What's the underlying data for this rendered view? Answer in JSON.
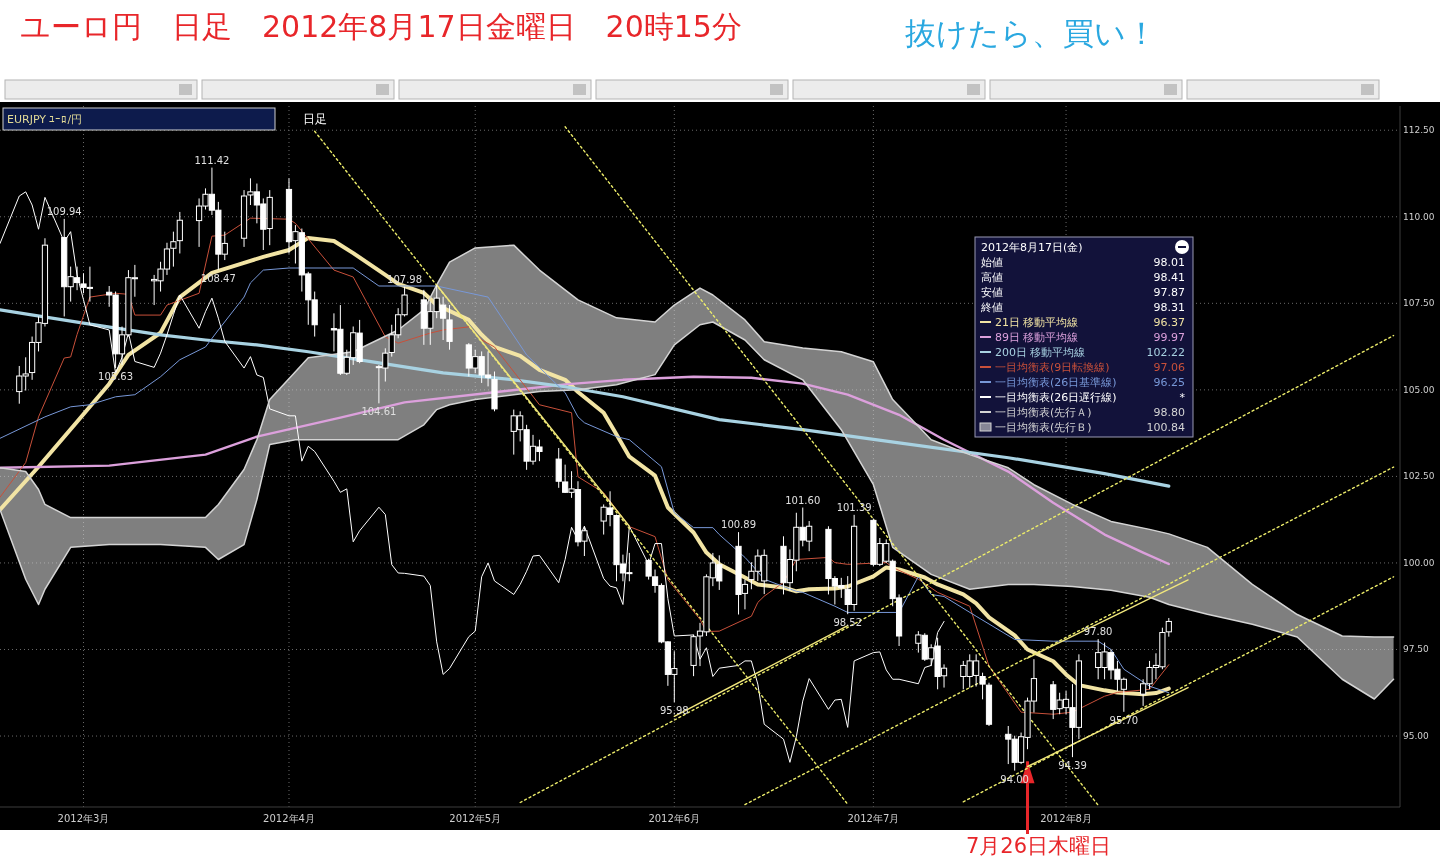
{
  "chart_data": {
    "type": "candlestick",
    "title": "ユーロ円　日足　2012年8月17日金曜日　20時15分",
    "subtitle": "抜けたら、買い！",
    "xlim": [
      "2012-02-17",
      "2012-09-22"
    ],
    "xticks": [
      {
        "value": "2012-03-01",
        "label": "2012年3月"
      },
      {
        "value": "2012-04-02",
        "label": "2012年4月"
      },
      {
        "value": "2012-05-01",
        "label": "2012年5月"
      },
      {
        "value": "2012-06-01",
        "label": "2012年6月"
      },
      {
        "value": "2012-07-02",
        "label": "2012年7月"
      },
      {
        "value": "2012-08-01",
        "label": "2012年8月"
      }
    ],
    "ylim": [
      92.95,
      113.2
    ],
    "yticks": [
      {
        "value": 95,
        "label": "95.00"
      },
      {
        "value": 97.5,
        "label": "97.50"
      },
      {
        "value": 100,
        "label": "100.00"
      },
      {
        "value": 102.5,
        "label": "102.50"
      },
      {
        "value": 105,
        "label": "105.00"
      },
      {
        "value": 107.5,
        "label": "107.50"
      },
      {
        "value": 110,
        "label": "110.00"
      },
      {
        "value": 112.5,
        "label": "112.50"
      }
    ],
    "grid": true,
    "legend": "top right",
    "x": [
      "2012-02-20",
      "2012-02-21",
      "2012-02-22",
      "2012-02-23",
      "2012-02-24",
      "2012-02-27",
      "2012-02-28",
      "2012-02-29",
      "2012-03-01",
      "2012-03-02",
      "2012-03-05",
      "2012-03-06",
      "2012-03-07",
      "2012-03-08",
      "2012-03-09",
      "2012-03-12",
      "2012-03-13",
      "2012-03-14",
      "2012-03-15",
      "2012-03-16",
      "2012-03-19",
      "2012-03-20",
      "2012-03-21",
      "2012-03-22",
      "2012-03-23",
      "2012-03-26",
      "2012-03-27",
      "2012-03-28",
      "2012-03-29",
      "2012-03-30",
      "2012-04-02",
      "2012-04-03",
      "2012-04-04",
      "2012-04-05",
      "2012-04-06",
      "2012-04-09",
      "2012-04-10",
      "2012-04-11",
      "2012-04-12",
      "2012-04-13",
      "2012-04-16",
      "2012-04-17",
      "2012-04-18",
      "2012-04-19",
      "2012-04-20",
      "2012-04-23",
      "2012-04-24",
      "2012-04-25",
      "2012-04-26",
      "2012-04-27",
      "2012-04-30",
      "2012-05-01",
      "2012-05-02",
      "2012-05-03",
      "2012-05-04",
      "2012-05-07",
      "2012-05-08",
      "2012-05-09",
      "2012-05-10",
      "2012-05-11",
      "2012-05-14",
      "2012-05-15",
      "2012-05-16",
      "2012-05-17",
      "2012-05-18",
      "2012-05-21",
      "2012-05-22",
      "2012-05-23",
      "2012-05-24",
      "2012-05-25",
      "2012-05-28",
      "2012-05-29",
      "2012-05-30",
      "2012-05-31",
      "2012-06-01",
      "2012-06-04",
      "2012-06-05",
      "2012-06-06",
      "2012-06-07",
      "2012-06-08",
      "2012-06-11",
      "2012-06-12",
      "2012-06-13",
      "2012-06-14",
      "2012-06-15",
      "2012-06-18",
      "2012-06-19",
      "2012-06-20",
      "2012-06-21",
      "2012-06-22",
      "2012-06-25",
      "2012-06-26",
      "2012-06-27",
      "2012-06-28",
      "2012-06-29",
      "2012-07-02",
      "2012-07-03",
      "2012-07-04",
      "2012-07-05",
      "2012-07-06",
      "2012-07-09",
      "2012-07-10",
      "2012-07-11",
      "2012-07-12",
      "2012-07-13",
      "2012-07-16",
      "2012-07-17",
      "2012-07-18",
      "2012-07-19",
      "2012-07-20",
      "2012-07-23",
      "2012-07-24",
      "2012-07-25",
      "2012-07-26",
      "2012-07-27",
      "2012-07-30",
      "2012-07-31",
      "2012-08-01",
      "2012-08-02",
      "2012-08-03",
      "2012-08-06",
      "2012-08-07",
      "2012-08-08",
      "2012-08-09",
      "2012-08-10",
      "2012-08-13",
      "2012-08-14",
      "2012-08-15",
      "2012-08-16",
      "2012-08-17"
    ],
    "ohlc": [
      [
        104.95,
        105.69,
        104.6,
        105.4
      ],
      [
        105.4,
        105.94,
        104.98,
        105.46
      ],
      [
        105.5,
        106.54,
        105.29,
        106.37
      ],
      [
        106.37,
        107.12,
        106.11,
        106.94
      ],
      [
        106.92,
        109.38,
        106.83,
        109.18
      ],
      [
        109.4,
        109.94,
        107.12,
        107.98
      ],
      [
        107.98,
        108.56,
        107.55,
        108.27
      ],
      [
        108.24,
        108.56,
        107.88,
        108.1
      ],
      [
        108.06,
        108.37,
        107.79,
        107.96
      ],
      [
        107.96,
        108.56,
        107.55,
        107.95
      ],
      [
        107.82,
        108.0,
        107.4,
        107.74
      ],
      [
        107.74,
        107.84,
        105.63,
        106.04
      ],
      [
        106.04,
        106.83,
        105.72,
        106.59
      ],
      [
        106.59,
        108.46,
        106.54,
        108.24
      ],
      [
        108.21,
        108.61,
        107.69,
        108.24
      ],
      [
        108.15,
        108.32,
        107.45,
        108.19
      ],
      [
        108.15,
        108.7,
        107.84,
        108.49
      ],
      [
        108.49,
        109.25,
        108.32,
        109.07
      ],
      [
        109.09,
        109.57,
        108.56,
        109.28
      ],
      [
        109.31,
        110.14,
        108.94,
        109.9
      ],
      [
        109.89,
        110.53,
        109.13,
        110.31
      ],
      [
        110.31,
        110.82,
        110.21,
        110.65
      ],
      [
        110.65,
        111.42,
        110.05,
        110.19
      ],
      [
        110.19,
        110.43,
        108.47,
        108.92
      ],
      [
        108.92,
        109.57,
        108.75,
        109.23
      ],
      [
        109.38,
        110.77,
        109.13,
        110.6
      ],
      [
        110.63,
        111.11,
        110.34,
        110.72
      ],
      [
        110.72,
        110.96,
        109.81,
        110.34
      ],
      [
        110.37,
        110.53,
        109.04,
        109.64
      ],
      [
        109.66,
        110.77,
        109.18,
        110.56
      ],
      [
        110.79,
        111.11,
        108.94,
        109.28
      ],
      [
        109.31,
        109.76,
        108.65,
        109.57
      ],
      [
        109.54,
        109.66,
        107.84,
        108.32
      ],
      [
        108.35,
        108.41,
        106.88,
        107.6
      ],
      [
        107.6,
        107.84,
        106.54,
        106.88
      ],
      [
        106.77,
        107.21,
        106.11,
        106.73
      ],
      [
        106.75,
        107.45,
        105.43,
        105.48
      ],
      [
        105.48,
        106.16,
        105.43,
        105.94
      ],
      [
        105.93,
        106.83,
        105.72,
        106.65
      ],
      [
        106.64,
        107.02,
        105.77,
        105.82
      ],
      [
        105.67,
        105.72,
        104.61,
        105.65
      ],
      [
        105.63,
        106.2,
        105.24,
        106.06
      ],
      [
        106.08,
        106.88,
        105.96,
        106.59
      ],
      [
        106.59,
        107.36,
        106.49,
        107.17
      ],
      [
        107.17,
        107.98,
        107.12,
        107.74
      ],
      [
        107.6,
        107.89,
        106.3,
        106.78
      ],
      [
        106.78,
        107.55,
        106.3,
        107.26
      ],
      [
        107.26,
        108.03,
        107.07,
        107.65
      ],
      [
        107.45,
        107.69,
        106.44,
        107.07
      ],
      [
        107.02,
        107.45,
        106.16,
        106.4
      ],
      [
        106.3,
        106.35,
        105.39,
        105.63
      ],
      [
        105.63,
        106.16,
        105.48,
        105.96
      ],
      [
        105.96,
        106.11,
        105.2,
        105.43
      ],
      [
        105.43,
        106.11,
        105.1,
        105.36
      ],
      [
        105.3,
        105.53,
        104.38,
        104.45
      ],
      [
        103.8,
        104.43,
        103.13,
        104.25
      ],
      [
        103.85,
        104.38,
        103.51,
        104.25
      ],
      [
        103.85,
        103.99,
        102.69,
        102.94
      ],
      [
        102.94,
        103.7,
        102.84,
        103.37
      ],
      [
        103.35,
        103.56,
        102.94,
        103.22
      ],
      [
        103.0,
        103.32,
        102.17,
        102.36
      ],
      [
        102.34,
        102.84,
        102.02,
        102.04
      ],
      [
        102.04,
        102.65,
        101.88,
        102.14
      ],
      [
        102.12,
        102.36,
        100.48,
        100.61
      ],
      [
        100.63,
        101.06,
        100.2,
        100.93
      ],
      [
        101.21,
        101.69,
        100.82,
        101.61
      ],
      [
        101.59,
        102.07,
        101.06,
        101.4
      ],
      [
        101.37,
        101.4,
        99.47,
        99.95
      ],
      [
        99.97,
        100.24,
        99.47,
        99.71
      ],
      [
        99.72,
        100.29,
        99.47,
        99.7
      ],
      [
        100.07,
        100.12,
        99.52,
        99.62
      ],
      [
        99.6,
        99.81,
        99.14,
        99.35
      ],
      [
        99.35,
        99.41,
        97.68,
        97.72
      ],
      [
        97.72,
        97.74,
        96.45,
        96.78
      ],
      [
        96.78,
        97.45,
        95.98,
        96.95
      ],
      [
        97.04,
        97.93,
        96.73,
        97.87
      ],
      [
        97.89,
        98.27,
        97.02,
        98.03
      ],
      [
        98.01,
        99.67,
        97.89,
        99.6
      ],
      [
        99.57,
        100.29,
        99.33,
        100.0
      ],
      [
        99.95,
        100.22,
        99.22,
        99.48
      ],
      [
        100.48,
        100.89,
        98.51,
        99.09
      ],
      [
        99.12,
        99.52,
        98.66,
        99.38
      ],
      [
        99.52,
        100.02,
        99.24,
        99.76
      ],
      [
        99.76,
        100.39,
        99.48,
        100.2
      ],
      [
        99.48,
        100.39,
        99.1,
        100.22
      ],
      [
        100.48,
        100.77,
        99.09,
        99.43
      ],
      [
        99.43,
        100.39,
        99.19,
        100.1
      ],
      [
        100.08,
        101.45,
        99.76,
        101.03
      ],
      [
        101.03,
        101.6,
        100.48,
        100.66
      ],
      [
        100.63,
        101.21,
        100.34,
        101.06
      ],
      [
        100.97,
        101.06,
        99.09,
        99.55
      ],
      [
        99.55,
        99.62,
        98.8,
        99.33
      ],
      [
        99.35,
        99.57,
        98.99,
        99.28
      ],
      [
        99.24,
        99.62,
        98.52,
        98.8
      ],
      [
        98.8,
        101.39,
        98.62,
        101.06
      ],
      [
        101.23,
        101.27,
        99.91,
        99.96
      ],
      [
        99.96,
        100.72,
        99.91,
        100.56
      ],
      [
        100.05,
        100.68,
        100.0,
        100.56
      ],
      [
        100.05,
        100.1,
        98.75,
        98.97
      ],
      [
        98.99,
        99.09,
        97.6,
        97.89
      ],
      [
        97.68,
        98.03,
        97.41,
        97.92
      ],
      [
        97.91,
        97.97,
        97.17,
        97.22
      ],
      [
        97.23,
        97.65,
        97.02,
        97.55
      ],
      [
        97.6,
        97.84,
        96.35,
        96.72
      ],
      [
        96.74,
        97.07,
        96.4,
        96.96
      ],
      [
        96.72,
        97.17,
        96.35,
        97.04
      ],
      [
        96.72,
        97.36,
        96.4,
        97.17
      ],
      [
        96.75,
        97.36,
        96.43,
        97.17
      ],
      [
        96.72,
        96.83,
        96.06,
        96.5
      ],
      [
        96.47,
        96.54,
        95.29,
        95.34
      ],
      [
        95.05,
        95.29,
        94.19,
        94.91
      ],
      [
        94.91,
        95.01,
        94.0,
        94.24
      ],
      [
        94.24,
        95.1,
        94.19,
        94.98
      ],
      [
        94.96,
        96.11,
        94.62,
        96.01
      ],
      [
        96.01,
        97.22,
        95.68,
        96.66
      ],
      [
        96.48,
        96.59,
        95.49,
        95.77
      ],
      [
        95.79,
        96.25,
        95.63,
        96.04
      ],
      [
        95.82,
        96.3,
        95.63,
        96.06
      ],
      [
        95.82,
        96.5,
        94.39,
        95.25
      ],
      [
        95.25,
        97.36,
        94.91,
        97.17
      ],
      [
        96.98,
        97.8,
        96.64,
        97.41
      ],
      [
        96.98,
        97.7,
        96.64,
        97.43
      ],
      [
        97.41,
        97.5,
        96.64,
        96.91
      ],
      [
        96.93,
        97.17,
        96.3,
        96.64
      ],
      [
        96.35,
        96.69,
        95.7,
        96.64
      ],
      [
        96.21,
        96.64,
        95.87,
        96.51
      ],
      [
        96.51,
        97.17,
        96.35,
        96.98
      ],
      [
        96.98,
        97.39,
        96.64,
        97.04
      ],
      [
        97.0,
        98.13,
        96.93,
        97.99
      ],
      [
        98.01,
        98.41,
        97.87,
        98.31
      ]
    ],
    "series": [
      {
        "name": "21日 移動平均線",
        "type": "line",
        "color": "#f2e4a4",
        "x": [
          "2012-02-17",
          "2012-02-23",
          "2012-02-29",
          "2012-03-05",
          "2012-03-08",
          "2012-03-13",
          "2012-03-16",
          "2012-03-21",
          "2012-03-26",
          "2012-03-29",
          "2012-04-02",
          "2012-04-05",
          "2012-04-09",
          "2012-04-12",
          "2012-04-17",
          "2012-04-19",
          "2012-04-23",
          "2012-04-25",
          "2012-04-30",
          "2012-05-02",
          "2012-05-04",
          "2012-05-08",
          "2012-05-11",
          "2012-05-15",
          "2012-05-17",
          "2012-05-21",
          "2012-05-23",
          "2012-05-25",
          "2012-05-29",
          "2012-05-31",
          "2012-06-04",
          "2012-06-06",
          "2012-06-08",
          "2012-06-12",
          "2012-06-14",
          "2012-06-18",
          "2012-06-20",
          "2012-06-22",
          "2012-06-26",
          "2012-06-28",
          "2012-07-02",
          "2012-07-04",
          "2012-07-06",
          "2012-07-10",
          "2012-07-12",
          "2012-07-16",
          "2012-07-18",
          "2012-07-20",
          "2012-07-24",
          "2012-07-26",
          "2012-07-30",
          "2012-08-01",
          "2012-08-03",
          "2012-08-07",
          "2012-08-09",
          "2012-08-13",
          "2012-08-15",
          "2012-08-17"
        ],
        "values": [
          101.54,
          102.78,
          104.08,
          105.17,
          106.01,
          106.65,
          107.68,
          108.38,
          108.67,
          108.84,
          109.04,
          109.39,
          109.3,
          108.95,
          108.32,
          108.06,
          107.8,
          107.45,
          107.02,
          106.59,
          106.24,
          105.98,
          105.58,
          105.29,
          104.94,
          104.34,
          103.71,
          103.07,
          102.52,
          101.6,
          100.88,
          100.3,
          99.96,
          99.58,
          99.38,
          99.29,
          99.18,
          99.24,
          99.26,
          99.32,
          99.61,
          99.87,
          99.81,
          99.58,
          99.38,
          99.09,
          98.83,
          98.43,
          97.91,
          97.5,
          97.16,
          96.78,
          96.47,
          96.32,
          96.26,
          96.21,
          96.24,
          96.37
        ]
      },
      {
        "name": "89日 移動平均線",
        "type": "line",
        "color": "#dca0dc",
        "x": [
          "2012-02-17",
          "2012-03-05",
          "2012-03-20",
          "2012-03-28",
          "2012-04-10",
          "2012-04-20",
          "2012-05-04",
          "2012-05-15",
          "2012-05-24",
          "2012-06-04",
          "2012-06-13",
          "2012-06-21",
          "2012-06-28",
          "2012-07-06",
          "2012-07-13",
          "2012-07-23",
          "2012-07-30",
          "2012-08-07",
          "2012-08-13",
          "2012-08-17"
        ],
        "values": [
          102.75,
          102.81,
          103.13,
          103.65,
          104.2,
          104.64,
          104.93,
          105.16,
          105.29,
          105.38,
          105.35,
          105.18,
          104.86,
          104.28,
          103.56,
          102.64,
          101.74,
          100.82,
          100.3,
          99.97
        ]
      },
      {
        "name": "200日 移動平均線",
        "type": "line",
        "color": "#a8d2e2",
        "x": [
          "2012-02-17",
          "2012-03-01",
          "2012-03-13",
          "2012-03-20",
          "2012-03-28",
          "2012-04-05",
          "2012-04-16",
          "2012-04-26",
          "2012-05-07",
          "2012-05-15",
          "2012-05-24",
          "2012-06-08",
          "2012-06-21",
          "2012-07-06",
          "2012-07-23",
          "2012-08-07",
          "2012-08-17"
        ],
        "values": [
          107.31,
          106.93,
          106.59,
          106.44,
          106.3,
          106.1,
          105.78,
          105.49,
          105.29,
          105.09,
          104.8,
          104.14,
          103.85,
          103.47,
          103.04,
          102.58,
          102.22
        ]
      },
      {
        "name": "一目均衡表(9日転換線)",
        "type": "line",
        "color": "#c8503a",
        "x": [
          "2012-02-17",
          "2012-02-21",
          "2012-02-23",
          "2012-02-27",
          "2012-02-28",
          "2012-02-29",
          "2012-03-02",
          "2012-03-06",
          "2012-03-08",
          "2012-03-09",
          "2012-03-13",
          "2012-03-14",
          "2012-03-19",
          "2012-03-21",
          "2012-03-23",
          "2012-03-27",
          "2012-04-02",
          "2012-04-03",
          "2012-04-09",
          "2012-04-12",
          "2012-04-17",
          "2012-04-19",
          "2012-04-24",
          "2012-04-26",
          "2012-04-30",
          "2012-05-02",
          "2012-05-04",
          "2012-05-11",
          "2012-05-16",
          "2012-05-17",
          "2012-05-21",
          "2012-05-25",
          "2012-05-29",
          "2012-05-31",
          "2012-06-05",
          "2012-06-06",
          "2012-06-08",
          "2012-06-13",
          "2012-06-14",
          "2012-06-15",
          "2012-06-18",
          "2012-06-20",
          "2012-06-25",
          "2012-06-26",
          "2012-06-28",
          "2012-07-04",
          "2012-07-05",
          "2012-07-09",
          "2012-07-12",
          "2012-07-17",
          "2012-07-20",
          "2012-07-25",
          "2012-07-30",
          "2012-08-02",
          "2012-08-07",
          "2012-08-09",
          "2012-08-14",
          "2012-08-17"
        ],
        "values": [
          101.9,
          102.9,
          104.22,
          105.92,
          105.95,
          106.6,
          107.68,
          107.79,
          107.76,
          107.16,
          107.16,
          107.45,
          107.79,
          109.44,
          109.47,
          109.96,
          109.93,
          109.81,
          108.46,
          108.26,
          106.53,
          106.35,
          106.64,
          106.73,
          106.82,
          106.44,
          106.24,
          104.57,
          104.34,
          102.49,
          102.03,
          101.05,
          100.76,
          99.52,
          98.37,
          98.02,
          98.03,
          98.46,
          98.86,
          99.04,
          99.44,
          100.1,
          100.16,
          100.01,
          99.96,
          100.01,
          99.87,
          99.53,
          99.15,
          98.75,
          97.02,
          95.69,
          95.63,
          95.69,
          96.15,
          96.26,
          96.35,
          97.06
        ]
      },
      {
        "name": "一目均衡表(26日基準線)",
        "type": "line",
        "color": "#7898d8",
        "x": [
          "2012-02-17",
          "2012-02-24",
          "2012-02-28",
          "2012-03-02",
          "2012-03-06",
          "2012-03-09",
          "2012-03-13",
          "2012-03-16",
          "2012-03-20",
          "2012-03-22",
          "2012-03-26",
          "2012-03-27",
          "2012-03-29",
          "2012-04-02",
          "2012-04-12",
          "2012-04-16",
          "2012-04-25",
          "2012-05-03",
          "2012-05-09",
          "2012-05-15",
          "2012-05-17",
          "2012-05-18",
          "2012-05-23",
          "2012-05-25",
          "2012-05-30",
          "2012-06-01",
          "2012-06-04",
          "2012-06-07",
          "2012-06-08",
          "2012-06-12",
          "2012-06-13",
          "2012-06-15",
          "2012-06-20",
          "2012-06-21",
          "2012-06-26",
          "2012-06-28",
          "2012-07-06",
          "2012-07-09",
          "2012-07-11",
          "2012-07-13",
          "2012-07-18",
          "2012-07-24",
          "2012-07-30",
          "2012-08-06",
          "2012-08-08",
          "2012-08-10",
          "2012-08-14",
          "2012-08-17"
        ],
        "values": [
          103.6,
          104.22,
          104.51,
          104.57,
          104.8,
          104.86,
          105.38,
          105.87,
          106.24,
          106.73,
          107.68,
          108.09,
          108.46,
          108.52,
          108.52,
          108.0,
          108.0,
          107.68,
          106.01,
          104.92,
          104.22,
          104.05,
          103.65,
          103.56,
          102.78,
          101.45,
          101.02,
          101.02,
          100.82,
          100.16,
          99.96,
          99.53,
          99.18,
          99.15,
          98.75,
          98.57,
          98.57,
          99.61,
          99.09,
          99.03,
          98.46,
          97.79,
          97.74,
          97.74,
          97.5,
          96.93,
          96.44,
          96.25
        ]
      },
      {
        "name": "一目均衡表(26日遅行線)",
        "type": "line",
        "color": "#ffffff",
        "x": [
          "2012-02-17",
          "2012-02-20",
          "2012-02-21",
          "2012-02-22",
          "2012-02-23",
          "2012-02-24",
          "2012-02-27",
          "2012-02-28",
          "2012-02-29",
          "2012-03-01",
          "2012-03-02",
          "2012-03-05",
          "2012-03-06",
          "2012-03-07",
          "2012-03-08",
          "2012-03-09",
          "2012-03-12",
          "2012-03-13",
          "2012-03-14",
          "2012-03-15",
          "2012-03-16",
          "2012-03-19",
          "2012-03-20",
          "2012-03-21",
          "2012-03-22",
          "2012-03-23",
          "2012-03-26",
          "2012-03-27",
          "2012-03-28",
          "2012-03-29",
          "2012-03-30",
          "2012-04-02",
          "2012-04-03",
          "2012-04-04",
          "2012-04-05",
          "2012-04-06",
          "2012-04-09",
          "2012-04-10",
          "2012-04-11",
          "2012-04-12",
          "2012-04-13",
          "2012-04-16",
          "2012-04-17",
          "2012-04-18",
          "2012-04-19",
          "2012-04-20",
          "2012-04-23",
          "2012-04-24",
          "2012-04-25",
          "2012-04-26",
          "2012-04-27",
          "2012-04-30",
          "2012-05-01",
          "2012-05-02",
          "2012-05-03",
          "2012-05-04",
          "2012-05-07",
          "2012-05-08",
          "2012-05-09",
          "2012-05-10",
          "2012-05-11",
          "2012-05-14",
          "2012-05-15",
          "2012-05-16",
          "2012-05-17",
          "2012-05-18",
          "2012-05-21",
          "2012-05-22",
          "2012-05-23",
          "2012-05-24",
          "2012-05-25",
          "2012-05-28",
          "2012-05-29",
          "2012-05-30",
          "2012-05-31",
          "2012-06-01",
          "2012-06-04",
          "2012-06-05",
          "2012-06-06",
          "2012-06-07",
          "2012-06-08",
          "2012-06-11",
          "2012-06-12",
          "2012-06-13",
          "2012-06-14",
          "2012-06-15",
          "2012-06-18",
          "2012-06-19",
          "2012-06-20",
          "2012-06-21",
          "2012-06-22",
          "2012-06-25",
          "2012-06-26",
          "2012-06-27",
          "2012-06-28",
          "2012-06-29",
          "2012-07-02",
          "2012-07-03",
          "2012-07-04",
          "2012-07-05",
          "2012-07-06",
          "2012-07-09",
          "2012-07-10",
          "2012-07-11",
          "2012-07-12",
          "2012-07-13"
        ],
        "values": [
          109.23,
          110.6,
          110.72,
          110.34,
          109.64,
          110.56,
          109.28,
          109.57,
          108.32,
          107.6,
          106.88,
          106.73,
          105.48,
          105.94,
          106.65,
          105.82,
          105.65,
          106.06,
          106.59,
          107.17,
          107.74,
          106.78,
          107.26,
          107.65,
          107.07,
          106.4,
          105.63,
          105.96,
          105.43,
          105.36,
          104.45,
          104.25,
          104.25,
          102.94,
          103.37,
          103.22,
          102.36,
          102.04,
          102.14,
          100.61,
          100.93,
          101.61,
          101.4,
          99.95,
          99.71,
          99.7,
          99.62,
          99.35,
          97.72,
          96.78,
          96.95,
          97.87,
          98.03,
          99.6,
          100.0,
          99.48,
          99.09,
          99.38,
          99.76,
          100.2,
          100.22,
          99.43,
          100.1,
          101.03,
          100.66,
          101.06,
          99.55,
          99.33,
          99.28,
          98.8,
          101.06,
          99.96,
          100.56,
          100.56,
          98.97,
          97.89,
          97.92,
          97.22,
          97.55,
          96.72,
          96.96,
          97.04,
          97.17,
          97.17,
          96.5,
          95.34,
          94.91,
          94.24,
          94.98,
          96.01,
          96.66,
          95.77,
          96.04,
          96.06,
          95.25,
          97.17,
          97.41,
          97.43,
          96.91,
          96.64,
          96.64,
          96.51,
          96.98,
          97.04,
          97.99,
          98.31
        ]
      },
      {
        "name": "一目均衡表(先行Ａ)",
        "type": "line",
        "color": "#d4d4d4",
        "x": [
          "2012-02-17",
          "2012-02-21",
          "2012-02-23",
          "2012-02-24",
          "2012-02-28",
          "2012-03-05",
          "2012-03-13",
          "2012-03-20",
          "2012-03-22",
          "2012-03-26",
          "2012-03-28",
          "2012-03-30",
          "2012-04-03",
          "2012-04-05",
          "2012-04-12",
          "2012-04-19",
          "2012-04-23",
          "2012-04-25",
          "2012-04-27",
          "2012-05-01",
          "2012-05-07",
          "2012-05-11",
          "2012-05-17",
          "2012-05-23",
          "2012-05-29",
          "2012-06-01",
          "2012-06-05",
          "2012-06-07",
          "2012-06-12",
          "2012-06-15",
          "2012-06-21",
          "2012-06-27",
          "2012-07-02",
          "2012-07-05",
          "2012-07-11",
          "2012-07-17",
          "2012-07-23",
          "2012-07-27",
          "2012-08-02",
          "2012-08-08",
          "2012-08-14",
          "2012-08-17",
          "2012-08-23",
          "2012-08-30",
          "2012-09-06",
          "2012-09-13",
          "2012-09-18",
          "2012-09-21"
        ],
        "values": [
          101.54,
          99.53,
          98.8,
          99.24,
          100.45,
          100.53,
          100.53,
          100.45,
          100.1,
          100.53,
          101.83,
          103.42,
          103.56,
          103.56,
          103.56,
          103.56,
          103.99,
          104.43,
          104.57,
          104.72,
          104.86,
          104.95,
          105.0,
          105.15,
          105.44,
          106.3,
          106.88,
          106.96,
          106.44,
          105.87,
          105.29,
          103.85,
          102.26,
          100.45,
          99.67,
          99.24,
          99.38,
          99.38,
          99.32,
          99.21,
          99.01,
          98.8,
          98.52,
          98.23,
          97.86,
          96.64,
          96.07,
          96.64
        ]
      },
      {
        "name": "一目均衡表(先行Ｂ)",
        "type": "line",
        "color": "#d4d4d4",
        "x": [
          "2012-02-17",
          "2012-02-21",
          "2012-02-23",
          "2012-02-24",
          "2012-02-28",
          "2012-03-05",
          "2012-03-13",
          "2012-03-20",
          "2012-03-22",
          "2012-03-26",
          "2012-03-28",
          "2012-03-30",
          "2012-04-03",
          "2012-04-05",
          "2012-04-12",
          "2012-04-19",
          "2012-04-23",
          "2012-04-25",
          "2012-04-27",
          "2012-05-01",
          "2012-05-07",
          "2012-05-11",
          "2012-05-17",
          "2012-05-23",
          "2012-05-29",
          "2012-06-01",
          "2012-06-05",
          "2012-06-07",
          "2012-06-12",
          "2012-06-15",
          "2012-06-21",
          "2012-06-27",
          "2012-07-02",
          "2012-07-05",
          "2012-07-11",
          "2012-07-17",
          "2012-07-23",
          "2012-07-27",
          "2012-08-02",
          "2012-08-08",
          "2012-08-14",
          "2012-08-17",
          "2012-08-23",
          "2012-08-30",
          "2012-09-06",
          "2012-09-13",
          "2012-09-18",
          "2012-09-21"
        ],
        "values": [
          102.75,
          102.64,
          102.12,
          101.69,
          101.31,
          101.31,
          101.31,
          101.31,
          101.69,
          102.7,
          103.56,
          104.72,
          105.52,
          105.93,
          106.1,
          106.73,
          107.31,
          108.03,
          108.69,
          109.1,
          109.18,
          108.46,
          107.6,
          107.08,
          106.96,
          107.45,
          107.94,
          107.74,
          107.02,
          106.39,
          106.21,
          106.1,
          105.81,
          104.72,
          103.56,
          103.13,
          102.75,
          102.26,
          101.69,
          101.2,
          100.97,
          100.84,
          100.45,
          99.38,
          98.51,
          97.89,
          97.86,
          97.86
        ],
        "lower": [
          101.54,
          99.53,
          98.8,
          99.24,
          100.45,
          100.53,
          100.53,
          100.45,
          100.1,
          100.53,
          101.83,
          103.42,
          103.56,
          103.56,
          103.56,
          103.56,
          103.99,
          104.43,
          104.57,
          104.72,
          104.86,
          104.95,
          105.0,
          105.15,
          105.44,
          106.3,
          106.88,
          106.96,
          106.44,
          105.87,
          105.29,
          103.85,
          102.26,
          100.45,
          99.67,
          99.24,
          99.38,
          99.38,
          99.32,
          99.21,
          99.01,
          98.8,
          98.52,
          98.23,
          97.86,
          96.64,
          96.07,
          96.64
        ],
        "upper": [
          102.75,
          102.64,
          102.12,
          101.69,
          101.31,
          101.31,
          101.31,
          101.31,
          101.69,
          102.7,
          103.56,
          104.72,
          105.52,
          105.93,
          106.1,
          106.73,
          107.31,
          108.03,
          108.69,
          109.1,
          109.18,
          108.46,
          107.6,
          107.08,
          106.96,
          107.45,
          107.94,
          107.74,
          107.02,
          106.39,
          106.21,
          106.1,
          105.81,
          104.72,
          103.56,
          103.13,
          102.75,
          102.26,
          101.69,
          101.2,
          100.97,
          100.84,
          100.45,
          99.38,
          98.51,
          97.89,
          97.86,
          97.86
        ]
      },
      {
        "type": "line",
        "color": "#ecec6a",
        "line_style": "dotted",
        "x": [
          "2012-04-06",
          "2012-06-28"
        ],
        "values": [
          112.47,
          93.03
        ]
      },
      {
        "type": "line",
        "color": "#ecec6a",
        "line_style": "dotted",
        "x": [
          "2012-05-15",
          "2012-08-06"
        ],
        "values": [
          112.6,
          93.0
        ]
      },
      {
        "type": "line",
        "color": "#ecec6a",
        "line_style": "dotted",
        "x": [
          "2012-05-08",
          "2012-09-21"
        ],
        "values": [
          93.08,
          106.57
        ]
      },
      {
        "type": "line",
        "color": "#ecec6a",
        "line_style": "dotted",
        "x": [
          "2012-06-12",
          "2012-09-21"
        ],
        "values": [
          93.02,
          102.77
        ]
      },
      {
        "type": "line",
        "color": "#ecec6a",
        "line_style": "dotted",
        "x": [
          "2012-07-16",
          "2012-09-21"
        ],
        "values": [
          93.1,
          99.6
        ]
      },
      {
        "type": "line",
        "color": "#f0e67c",
        "line_style": "solid",
        "x": [
          "2012-04-25",
          "2012-05-25"
        ],
        "values": [
          108.03,
          101.06
        ]
      },
      {
        "type": "line",
        "color": "#f0e67c",
        "line_style": "solid",
        "x": [
          "2012-06-01",
          "2012-06-28"
        ],
        "values": [
          95.57,
          98.19
        ]
      },
      {
        "type": "line",
        "color": "#f0e67c",
        "line_style": "solid",
        "x": [
          "2012-07-26",
          "2012-08-20"
        ],
        "values": [
          97.25,
          99.51
        ]
      },
      {
        "type": "line",
        "color": "#f0e67c",
        "line_style": "solid",
        "x": [
          "2012-07-26",
          "2012-08-20"
        ],
        "values": [
          94.12,
          96.4
        ]
      }
    ],
    "annotations": [
      "EURJPY ﾕｰﾛ/円",
      "日足",
      "2012年8月17日(金)",
      "始値",
      "高値",
      "安値",
      "終値",
      "98.01",
      "98.41",
      "97.87",
      "98.31",
      "96.37",
      "99.97",
      "102.22",
      "97.06",
      "96.25",
      "*",
      "98.80",
      "100.84",
      {
        "text": "109.94",
        "x": "2012-02-27",
        "y": 109.94
      },
      {
        "text": "111.42",
        "x": "2012-03-21",
        "y": 111.42
      },
      {
        "text": "108.47",
        "x": "2012-03-22",
        "y": 108.47
      },
      {
        "text": "105.63",
        "x": "2012-03-06",
        "y": 105.63
      },
      {
        "text": "107.98",
        "x": "2012-04-20",
        "y": 107.98
      },
      {
        "text": "104.61",
        "x": "2012-04-16",
        "y": 104.61
      },
      {
        "text": "95.98",
        "x": "2012-06-01",
        "y": 95.98
      },
      {
        "text": "100.89",
        "x": "2012-06-11",
        "y": 100.89
      },
      {
        "text": "101.60",
        "x": "2012-06-21",
        "y": 101.6
      },
      {
        "text": "101.39",
        "x": "2012-06-29",
        "y": 101.39
      },
      {
        "text": "98.52",
        "x": "2012-06-28",
        "y": 98.52
      },
      {
        "text": "94.00",
        "x": "2012-07-24",
        "y": 94.0
      },
      {
        "text": "94.39",
        "x": "2012-08-02",
        "y": 94.39
      },
      {
        "text": "97.80",
        "x": "2012-08-06",
        "y": 97.8
      },
      {
        "text": "95.70",
        "x": "2012-08-10",
        "y": 95.7
      },
      {
        "text": "7月26日木曜日",
        "x": "2012-07-26",
        "y": 94.27
      }
    ]
  }
}
